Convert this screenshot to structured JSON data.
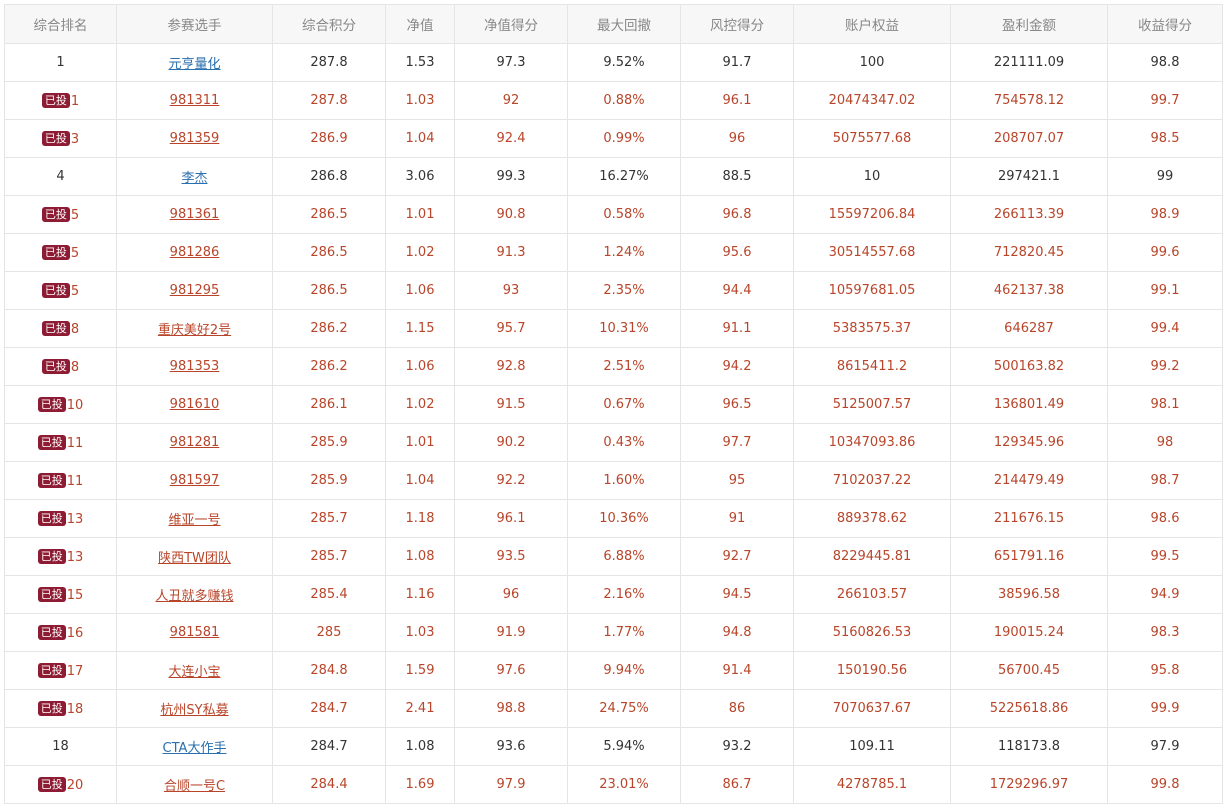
{
  "columns": [
    "综合排名",
    "参赛选手",
    "综合积分",
    "净值",
    "净值得分",
    "最大回撤",
    "风控得分",
    "账户权益",
    "盈利金额",
    "收益得分"
  ],
  "badge_label": "已投",
  "colors": {
    "link_blue": "#2a6fae",
    "invested_red": "#b8452a",
    "badge_bg": "#8c1b33"
  },
  "rows": [
    {
      "invested": false,
      "rank": "1",
      "name": "元亨量化",
      "score": "287.8",
      "nav": "1.53",
      "nav_score": "97.3",
      "max_dd": "9.52%",
      "risk_score": "91.7",
      "equity": "100",
      "profit": "221111.09",
      "return_score": "98.8"
    },
    {
      "invested": true,
      "rank": "1",
      "name": "981311",
      "score": "287.8",
      "nav": "1.03",
      "nav_score": "92",
      "max_dd": "0.88%",
      "risk_score": "96.1",
      "equity": "20474347.02",
      "profit": "754578.12",
      "return_score": "99.7"
    },
    {
      "invested": true,
      "rank": "3",
      "name": "981359",
      "score": "286.9",
      "nav": "1.04",
      "nav_score": "92.4",
      "max_dd": "0.99%",
      "risk_score": "96",
      "equity": "5075577.68",
      "profit": "208707.07",
      "return_score": "98.5"
    },
    {
      "invested": false,
      "rank": "4",
      "name": "李杰",
      "score": "286.8",
      "nav": "3.06",
      "nav_score": "99.3",
      "max_dd": "16.27%",
      "risk_score": "88.5",
      "equity": "10",
      "profit": "297421.1",
      "return_score": "99"
    },
    {
      "invested": true,
      "rank": "5",
      "name": "981361",
      "score": "286.5",
      "nav": "1.01",
      "nav_score": "90.8",
      "max_dd": "0.58%",
      "risk_score": "96.8",
      "equity": "15597206.84",
      "profit": "266113.39",
      "return_score": "98.9"
    },
    {
      "invested": true,
      "rank": "5",
      "name": "981286",
      "score": "286.5",
      "nav": "1.02",
      "nav_score": "91.3",
      "max_dd": "1.24%",
      "risk_score": "95.6",
      "equity": "30514557.68",
      "profit": "712820.45",
      "return_score": "99.6"
    },
    {
      "invested": true,
      "rank": "5",
      "name": "981295",
      "score": "286.5",
      "nav": "1.06",
      "nav_score": "93",
      "max_dd": "2.35%",
      "risk_score": "94.4",
      "equity": "10597681.05",
      "profit": "462137.38",
      "return_score": "99.1"
    },
    {
      "invested": true,
      "rank": "8",
      "name": "重庆美好2号",
      "score": "286.2",
      "nav": "1.15",
      "nav_score": "95.7",
      "max_dd": "10.31%",
      "risk_score": "91.1",
      "equity": "5383575.37",
      "profit": "646287",
      "return_score": "99.4"
    },
    {
      "invested": true,
      "rank": "8",
      "name": "981353",
      "score": "286.2",
      "nav": "1.06",
      "nav_score": "92.8",
      "max_dd": "2.51%",
      "risk_score": "94.2",
      "equity": "8615411.2",
      "profit": "500163.82",
      "return_score": "99.2"
    },
    {
      "invested": true,
      "rank": "10",
      "name": "981610",
      "score": "286.1",
      "nav": "1.02",
      "nav_score": "91.5",
      "max_dd": "0.67%",
      "risk_score": "96.5",
      "equity": "5125007.57",
      "profit": "136801.49",
      "return_score": "98.1"
    },
    {
      "invested": true,
      "rank": "11",
      "name": "981281",
      "score": "285.9",
      "nav": "1.01",
      "nav_score": "90.2",
      "max_dd": "0.43%",
      "risk_score": "97.7",
      "equity": "10347093.86",
      "profit": "129345.96",
      "return_score": "98"
    },
    {
      "invested": true,
      "rank": "11",
      "name": "981597",
      "score": "285.9",
      "nav": "1.04",
      "nav_score": "92.2",
      "max_dd": "1.60%",
      "risk_score": "95",
      "equity": "7102037.22",
      "profit": "214479.49",
      "return_score": "98.7"
    },
    {
      "invested": true,
      "rank": "13",
      "name": "维亚一号",
      "score": "285.7",
      "nav": "1.18",
      "nav_score": "96.1",
      "max_dd": "10.36%",
      "risk_score": "91",
      "equity": "889378.62",
      "profit": "211676.15",
      "return_score": "98.6"
    },
    {
      "invested": true,
      "rank": "13",
      "name": "陕西TW团队",
      "score": "285.7",
      "nav": "1.08",
      "nav_score": "93.5",
      "max_dd": "6.88%",
      "risk_score": "92.7",
      "equity": "8229445.81",
      "profit": "651791.16",
      "return_score": "99.5"
    },
    {
      "invested": true,
      "rank": "15",
      "name": "人丑就多赚钱",
      "score": "285.4",
      "nav": "1.16",
      "nav_score": "96",
      "max_dd": "2.16%",
      "risk_score": "94.5",
      "equity": "266103.57",
      "profit": "38596.58",
      "return_score": "94.9"
    },
    {
      "invested": true,
      "rank": "16",
      "name": "981581",
      "score": "285",
      "nav": "1.03",
      "nav_score": "91.9",
      "max_dd": "1.77%",
      "risk_score": "94.8",
      "equity": "5160826.53",
      "profit": "190015.24",
      "return_score": "98.3"
    },
    {
      "invested": true,
      "rank": "17",
      "name": "大连小宝",
      "score": "284.8",
      "nav": "1.59",
      "nav_score": "97.6",
      "max_dd": "9.94%",
      "risk_score": "91.4",
      "equity": "150190.56",
      "profit": "56700.45",
      "return_score": "95.8"
    },
    {
      "invested": true,
      "rank": "18",
      "name": "杭州SY私募",
      "score": "284.7",
      "nav": "2.41",
      "nav_score": "98.8",
      "max_dd": "24.75%",
      "risk_score": "86",
      "equity": "7070637.67",
      "profit": "5225618.86",
      "return_score": "99.9"
    },
    {
      "invested": false,
      "rank": "18",
      "name": "CTA大作手",
      "score": "284.7",
      "nav": "1.08",
      "nav_score": "93.6",
      "max_dd": "5.94%",
      "risk_score": "93.2",
      "equity": "109.11",
      "profit": "118173.8",
      "return_score": "97.9"
    },
    {
      "invested": true,
      "rank": "20",
      "name": "合顺一号C",
      "score": "284.4",
      "nav": "1.69",
      "nav_score": "97.9",
      "max_dd": "23.01%",
      "risk_score": "86.7",
      "equity": "4278785.1",
      "profit": "1729296.97",
      "return_score": "99.8"
    }
  ]
}
